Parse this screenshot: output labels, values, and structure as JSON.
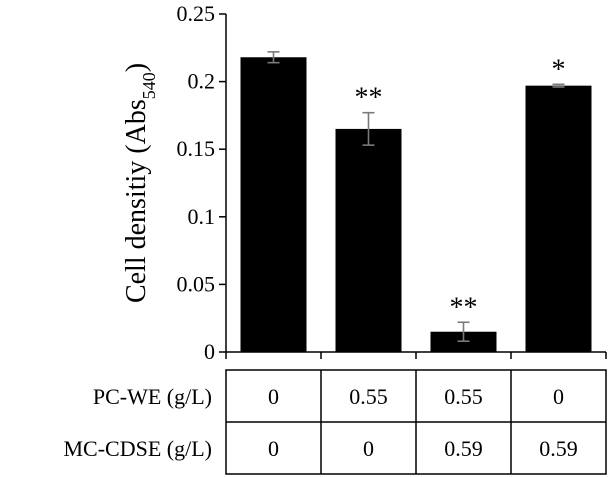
{
  "chart_data": {
    "type": "bar",
    "title": "",
    "xlabel": "",
    "ylabel": "Cell densitiy (Abs",
    "ylabel_sub": "540",
    "ylabel_close": ")",
    "ylim": [
      0,
      0.25
    ],
    "yticks": [
      {
        "value": 0,
        "label": "0"
      },
      {
        "value": 0.05,
        "label": "0.05"
      },
      {
        "value": 0.1,
        "label": "0.1"
      },
      {
        "value": 0.15,
        "label": "0.15"
      },
      {
        "value": 0.2,
        "label": "0.2"
      },
      {
        "value": 0.25,
        "label": "0.25"
      }
    ],
    "grid": false,
    "bar_color": "#000000",
    "error_color": "#7a7a7a",
    "values": [
      0.218,
      0.165,
      0.015,
      0.197
    ],
    "errors": [
      0.004,
      0.012,
      0.007,
      0.001
    ],
    "significance": [
      "",
      "**",
      "**",
      "*"
    ],
    "table": {
      "rows": [
        {
          "label": "PC-WE (g/L)",
          "cells": [
            "0",
            "0.55",
            "0.55",
            "0"
          ]
        },
        {
          "label": "MC-CDSE (g/L)",
          "cells": [
            "0",
            "0",
            "0.59",
            "0.59"
          ]
        }
      ]
    }
  }
}
